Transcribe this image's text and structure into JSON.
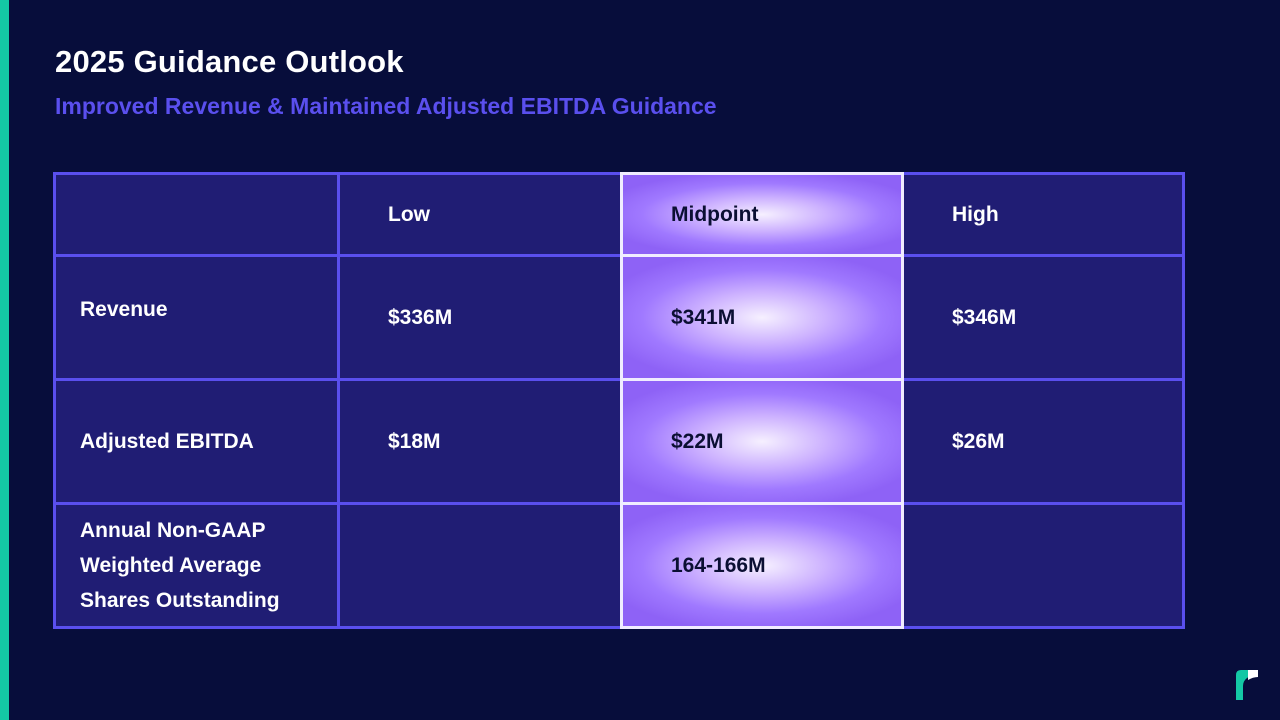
{
  "slide": {
    "title": "2025 Guidance Outlook",
    "subtitle": "Improved Revenue & Maintained Adjusted EBITDA Guidance"
  },
  "table": {
    "columns": [
      "",
      "Low",
      "Midpoint",
      "High"
    ],
    "rows": [
      {
        "label": "Revenue",
        "low": "$336M",
        "midpoint": "$341M",
        "high": "$346M"
      },
      {
        "label": "Adjusted EBITDA",
        "low": "$18M",
        "midpoint": "$22M",
        "high": "$26M"
      },
      {
        "label_lines": [
          "Annual Non-GAAP",
          "Weighted Average",
          "Shares Outstanding"
        ],
        "low": "",
        "midpoint": "164-166M",
        "high": ""
      }
    ]
  },
  "colors": {
    "background": "#070d3b",
    "accent_bar": "#14c8a5",
    "subtitle": "#5a4fee",
    "grid_line": "#5a4fee",
    "cell_fill": "#201d74",
    "midpoint_highlight": "#a079ff"
  },
  "icons": {
    "logo": "brand-logo-icon"
  }
}
